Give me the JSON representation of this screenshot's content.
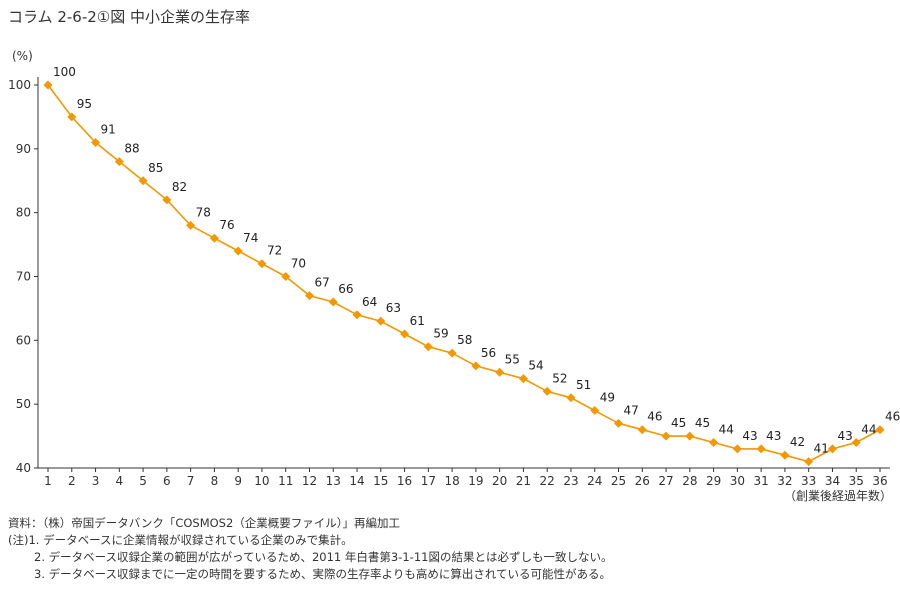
{
  "figure": {
    "title": "コラム 2-6-2①図 中小企業の生存率"
  },
  "chart_data": {
    "type": "line",
    "title": "コラム 2-6-2①図 中小企業の生存率",
    "xlabel": "（創業後経過年数）",
    "ylabel": "(%)",
    "ylim": [
      40,
      100
    ],
    "yticks": [
      40,
      50,
      60,
      70,
      80,
      90,
      100
    ],
    "grid": false,
    "legend": "none",
    "marker": "diamond",
    "color": "#f39800",
    "x": [
      1,
      2,
      3,
      4,
      5,
      6,
      7,
      8,
      9,
      10,
      11,
      12,
      13,
      14,
      15,
      16,
      17,
      18,
      19,
      20,
      21,
      22,
      23,
      24,
      25,
      26,
      27,
      28,
      29,
      30,
      31,
      32,
      33,
      34,
      35,
      36
    ],
    "series": [
      {
        "values": [
          100,
          95,
          91,
          88,
          85,
          82,
          78,
          76,
          74,
          72,
          70,
          67,
          66,
          64,
          63,
          61,
          59,
          58,
          56,
          55,
          54,
          52,
          51,
          49,
          47,
          46,
          45,
          45,
          44,
          43,
          43,
          42,
          41,
          43,
          44,
          46
        ],
        "labels": [
          "100",
          "95",
          "91",
          "88",
          "85",
          "82",
          "78",
          "76",
          "74",
          "72",
          "70",
          "67",
          "66",
          "64",
          "63",
          "61",
          "59",
          "58",
          "56",
          "55",
          "54",
          "52",
          "51",
          "49",
          "47",
          "46",
          "45",
          "45",
          "44",
          "43",
          "43",
          "42",
          "41",
          "43",
          "44",
          "46"
        ]
      }
    ]
  },
  "notes": {
    "source": "資料：（株）帝国データバンク「COSMOS2（企業概要ファイル）」再編加工",
    "note1": "(注)1. データベースに企業情報が収録されている企業のみで集計。",
    "note2": "2. データベース収録企業の範囲が広がっているため、2011 年白書第3-1-11図の結果とは必ずしも一致しない。",
    "note3": "3. データベース収録までに一定の時間を要するため、実際の生存率よりも高めに算出されている可能性がある。"
  }
}
